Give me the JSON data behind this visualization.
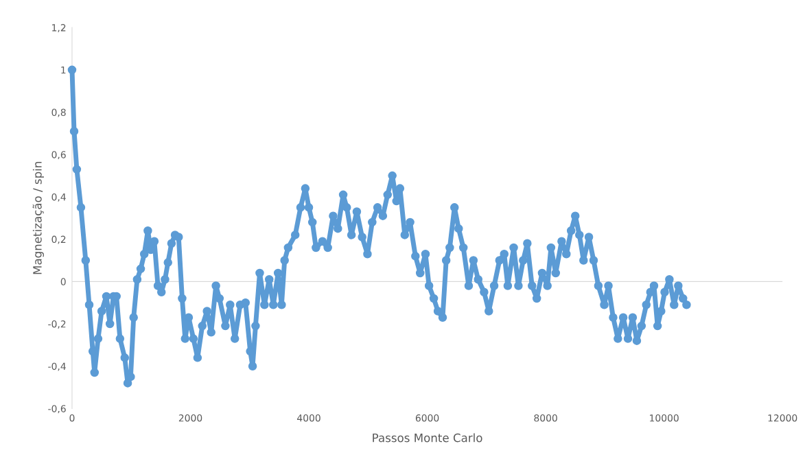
{
  "chart_data": {
    "type": "line",
    "xlabel": "Passos Monte Carlo",
    "ylabel": "Magnetização / spin",
    "xlim": [
      0,
      12000
    ],
    "xticks": [
      0,
      2000,
      4000,
      6000,
      8000,
      10000,
      12000
    ],
    "ylim": [
      -0.6,
      1.2
    ],
    "yticks": [
      {
        "value": -0.6,
        "label": "-0,6"
      },
      {
        "value": -0.4,
        "label": "-0,4"
      },
      {
        "value": -0.2,
        "label": "-0,2"
      },
      0,
      {
        "value": 0.2,
        "label": "0,2"
      },
      {
        "value": 0.4,
        "label": "0,4"
      },
      {
        "value": 0.6,
        "label": "0,6"
      },
      {
        "value": 0.8,
        "label": "0,8"
      },
      1,
      {
        "value": 1.2,
        "label": "1,2"
      }
    ],
    "grid": false,
    "ref_lines": [
      {
        "axis": "y",
        "value": 0,
        "color": "#d9d9d9",
        "line_style": "solid"
      }
    ],
    "legend": false,
    "marker": "circle",
    "line_style": "solid",
    "series": [
      {
        "color": "#5b9bd5",
        "x": [
          0,
          35,
          80,
          150,
          230,
          290,
          350,
          380,
          440,
          500,
          580,
          640,
          700,
          750,
          810,
          890,
          940,
          990,
          1040,
          1100,
          1160,
          1220,
          1280,
          1330,
          1390,
          1450,
          1510,
          1570,
          1620,
          1680,
          1740,
          1800,
          1860,
          1910,
          1970,
          2050,
          2120,
          2200,
          2280,
          2350,
          2430,
          2490,
          2590,
          2670,
          2750,
          2840,
          2930,
          3010,
          3050,
          3100,
          3170,
          3250,
          3330,
          3400,
          3480,
          3540,
          3590,
          3650,
          3770,
          3860,
          3940,
          4000,
          4060,
          4120,
          4230,
          4320,
          4410,
          4490,
          4580,
          4640,
          4720,
          4810,
          4900,
          4990,
          5070,
          5160,
          5250,
          5330,
          5410,
          5480,
          5540,
          5620,
          5710,
          5800,
          5880,
          5970,
          6030,
          6110,
          6180,
          6260,
          6320,
          6380,
          6460,
          6530,
          6610,
          6700,
          6780,
          6860,
          6960,
          7040,
          7130,
          7220,
          7300,
          7360,
          7460,
          7540,
          7620,
          7690,
          7770,
          7850,
          7940,
          8030,
          8090,
          8170,
          8270,
          8350,
          8430,
          8500,
          8570,
          8640,
          8730,
          8810,
          8890,
          8990,
          9060,
          9140,
          9220,
          9310,
          9390,
          9470,
          9540,
          9620,
          9700,
          9770,
          9830,
          9890,
          9950,
          10010,
          10090,
          10170,
          10240,
          10320,
          10380
        ],
        "values": [
          1.0,
          0.71,
          0.53,
          0.35,
          0.1,
          -0.11,
          -0.33,
          -0.43,
          -0.27,
          -0.14,
          -0.07,
          -0.2,
          -0.07,
          -0.07,
          -0.27,
          -0.36,
          -0.48,
          -0.45,
          -0.17,
          0.01,
          0.06,
          0.13,
          0.24,
          0.15,
          0.19,
          -0.02,
          -0.05,
          0.01,
          0.09,
          0.18,
          0.22,
          0.21,
          -0.08,
          -0.27,
          -0.17,
          -0.27,
          -0.36,
          -0.21,
          -0.14,
          -0.24,
          -0.02,
          -0.08,
          -0.21,
          -0.11,
          -0.27,
          -0.11,
          -0.1,
          -0.33,
          -0.4,
          -0.21,
          0.04,
          -0.11,
          0.01,
          -0.11,
          0.04,
          -0.11,
          0.1,
          0.16,
          0.22,
          0.35,
          0.44,
          0.35,
          0.28,
          0.16,
          0.19,
          0.16,
          0.31,
          0.25,
          0.41,
          0.35,
          0.22,
          0.33,
          0.21,
          0.13,
          0.28,
          0.35,
          0.31,
          0.41,
          0.5,
          0.38,
          0.44,
          0.22,
          0.28,
          0.12,
          0.04,
          0.13,
          -0.02,
          -0.08,
          -0.14,
          -0.17,
          0.1,
          0.16,
          0.35,
          0.25,
          0.16,
          -0.02,
          0.1,
          0.01,
          -0.05,
          -0.14,
          -0.02,
          0.1,
          0.13,
          -0.02,
          0.16,
          -0.02,
          0.1,
          0.18,
          -0.02,
          -0.08,
          0.04,
          -0.02,
          0.16,
          0.04,
          0.19,
          0.13,
          0.24,
          0.31,
          0.22,
          0.1,
          0.21,
          0.1,
          -0.02,
          -0.11,
          -0.02,
          -0.17,
          -0.27,
          -0.17,
          -0.27,
          -0.17,
          -0.28,
          -0.21,
          -0.11,
          -0.05,
          -0.02,
          -0.21,
          -0.14,
          -0.05,
          0.01,
          -0.11,
          -0.02,
          -0.08,
          -0.11
        ]
      }
    ]
  }
}
